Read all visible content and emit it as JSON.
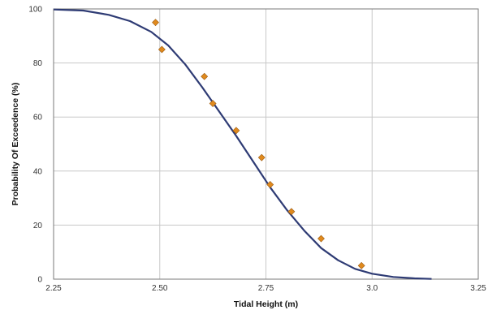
{
  "chart_data": {
    "type": "scatter",
    "title": "",
    "xlabel": "Tidal Height (m)",
    "ylabel": "Probability Of Exceedence (%)",
    "xlim": [
      2.25,
      3.25
    ],
    "ylim": [
      0,
      100
    ],
    "x_ticks": [
      2.25,
      2.5,
      2.75,
      3.0,
      3.25
    ],
    "x_tick_labels": [
      "2.25",
      "2.50",
      "2.75",
      "3.0",
      "3.25"
    ],
    "y_ticks": [
      0,
      20,
      40,
      60,
      80,
      100
    ],
    "y_tick_labels": [
      "0",
      "20",
      "40",
      "60",
      "80",
      "100"
    ],
    "grid": true,
    "legend": "none",
    "series": [
      {
        "type": "scatter",
        "marker": "diamond",
        "color": "#E08A1E",
        "points": [
          [
            2.49,
            95
          ],
          [
            2.505,
            85
          ],
          [
            2.605,
            75
          ],
          [
            2.625,
            65
          ],
          [
            2.68,
            55
          ],
          [
            2.74,
            45
          ],
          [
            2.76,
            35
          ],
          [
            2.81,
            25
          ],
          [
            2.88,
            15
          ],
          [
            2.975,
            5
          ]
        ]
      },
      {
        "type": "line",
        "color": "#2E3B74",
        "points": [
          [
            2.25,
            99.8
          ],
          [
            2.32,
            99.4
          ],
          [
            2.38,
            97.8
          ],
          [
            2.43,
            95.5
          ],
          [
            2.48,
            91.5
          ],
          [
            2.52,
            86.5
          ],
          [
            2.56,
            79.5
          ],
          [
            2.6,
            71
          ],
          [
            2.64,
            62
          ],
          [
            2.68,
            53
          ],
          [
            2.72,
            43.5
          ],
          [
            2.76,
            34
          ],
          [
            2.8,
            25.5
          ],
          [
            2.84,
            18
          ],
          [
            2.88,
            11.5
          ],
          [
            2.92,
            7
          ],
          [
            2.96,
            3.8
          ],
          [
            3.0,
            2
          ],
          [
            3.05,
            0.8
          ],
          [
            3.1,
            0.3
          ],
          [
            3.14,
            0.1
          ]
        ]
      }
    ]
  }
}
